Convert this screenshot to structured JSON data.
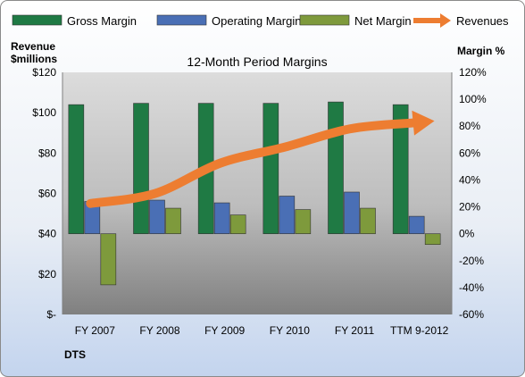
{
  "chart_data": {
    "type": "bar",
    "title": "12-Month Period Margins",
    "company": "DTS",
    "categories": [
      "FY 2007",
      "FY 2008",
      "FY 2009",
      "FY 2010",
      "FY 2011",
      "TTM 9-2012"
    ],
    "left_axis": {
      "label_line1": "Revenue",
      "label_line2": "$millions",
      "ticks": [
        "$120",
        "$100",
        "$80",
        "$60",
        "$40",
        "$20",
        "$-"
      ],
      "ylim": [
        0,
        120
      ]
    },
    "right_axis": {
      "label": "Margin %",
      "ticks": [
        "120%",
        "100%",
        "80%",
        "60%",
        "40%",
        "20%",
        "0%",
        "-20%",
        "-40%",
        "-60%"
      ],
      "ylim": [
        -60,
        120
      ]
    },
    "series": [
      {
        "name": "Gross Margin",
        "axis": "right",
        "color": "#1F7A44",
        "values": [
          96,
          97,
          97,
          97,
          98,
          96
        ]
      },
      {
        "name": "Operating Margin",
        "axis": "right",
        "color": "#4A6FB5",
        "values": [
          24,
          25,
          23,
          28,
          31,
          13
        ]
      },
      {
        "name": "Net Margin",
        "axis": "right",
        "color": "#7E9A3C",
        "values": [
          -38,
          19,
          14,
          18,
          19,
          -8
        ]
      },
      {
        "name": "Revenues",
        "axis": "left",
        "color": "#ED7D31",
        "type": "line",
        "values": [
          55,
          60,
          75,
          83,
          92,
          95
        ]
      }
    ],
    "legend_position": "top",
    "grid": false
  }
}
